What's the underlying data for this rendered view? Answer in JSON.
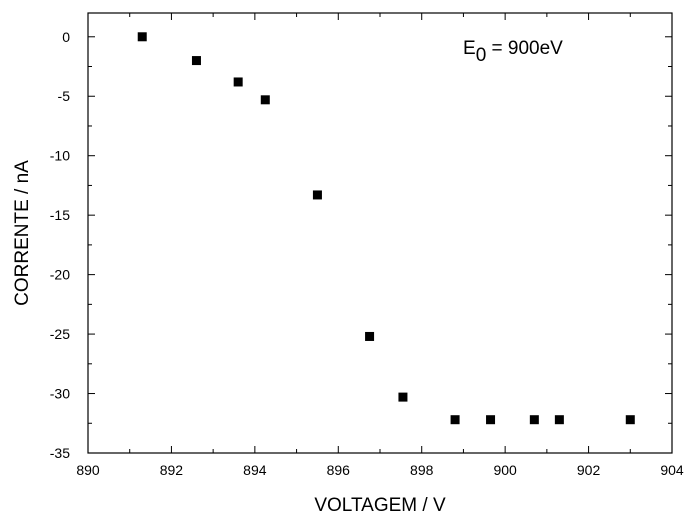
{
  "chart_data": {
    "type": "scatter",
    "xlabel": "VOLTAGEM / V",
    "ylabel": "CORRENTE / nA",
    "xlim": [
      890,
      904
    ],
    "ylim": [
      -35,
      2
    ],
    "x_ticks": [
      890,
      892,
      894,
      896,
      898,
      900,
      902,
      904
    ],
    "y_ticks": [
      0,
      -5,
      -10,
      -15,
      -20,
      -25,
      -30,
      -35
    ],
    "grid": false,
    "annotation": {
      "main": "E",
      "sub": "0",
      "rest": " = 900eV"
    },
    "marker": "square",
    "marker_color": "#000000",
    "points": [
      {
        "x": 891.3,
        "y": 0.0
      },
      {
        "x": 892.6,
        "y": -2.0
      },
      {
        "x": 893.6,
        "y": -3.8
      },
      {
        "x": 894.25,
        "y": -5.3
      },
      {
        "x": 895.5,
        "y": -13.3
      },
      {
        "x": 896.75,
        "y": -25.2
      },
      {
        "x": 897.55,
        "y": -30.3
      },
      {
        "x": 898.8,
        "y": -32.2
      },
      {
        "x": 899.65,
        "y": -32.2
      },
      {
        "x": 900.7,
        "y": -32.2
      },
      {
        "x": 901.3,
        "y": -32.2
      },
      {
        "x": 903.0,
        "y": -32.2
      }
    ]
  }
}
